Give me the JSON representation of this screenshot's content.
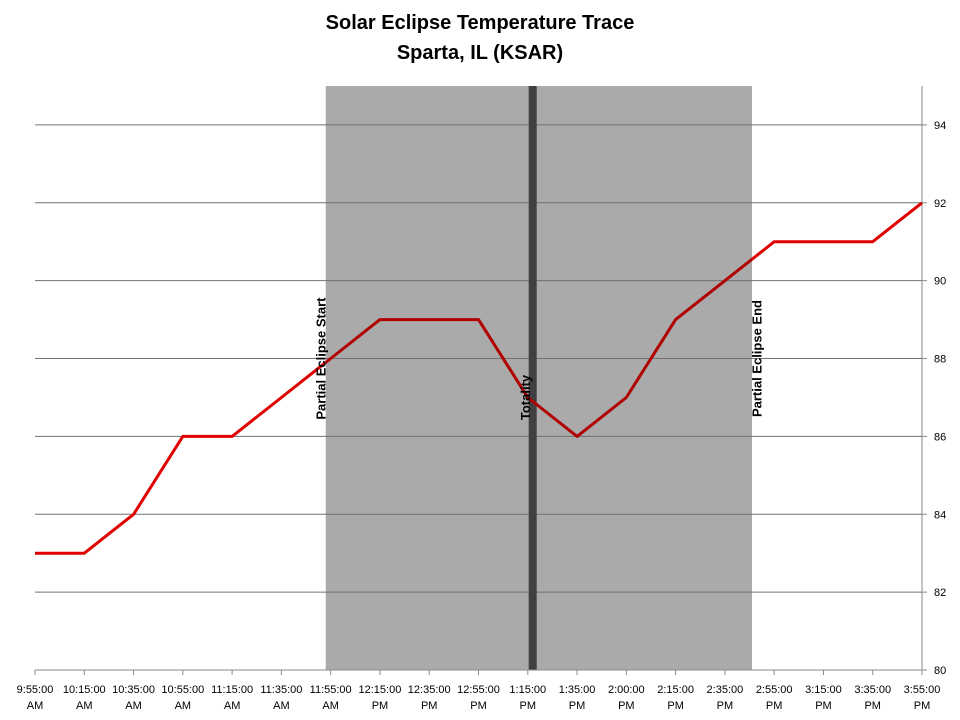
{
  "chart_data": {
    "type": "line",
    "title": "Solar Eclipse Temperature Trace",
    "subtitle": "Sparta, IL (KSAR)",
    "xlabel": "",
    "ylabel": "",
    "ylim": [
      80,
      95
    ],
    "y_ticks": [
      80,
      82,
      84,
      86,
      88,
      90,
      92,
      94
    ],
    "y_axis_side": "right",
    "grid": true,
    "x_tick_labels": [
      [
        "9:55:00",
        "AM"
      ],
      [
        "10:15:00",
        "AM"
      ],
      [
        "10:35:00",
        "AM"
      ],
      [
        "10:55:00",
        "AM"
      ],
      [
        "11:15:00",
        "AM"
      ],
      [
        "11:35:00",
        "AM"
      ],
      [
        "11:55:00",
        "AM"
      ],
      [
        "12:15:00",
        "PM"
      ],
      [
        "12:35:00",
        "PM"
      ],
      [
        "12:55:00",
        "PM"
      ],
      [
        "1:15:00",
        "PM"
      ],
      [
        "1:35:00",
        "PM"
      ],
      [
        "2:00:00",
        "PM"
      ],
      [
        "2:15:00",
        "PM"
      ],
      [
        "2:35:00",
        "PM"
      ],
      [
        "2:55:00",
        "PM"
      ],
      [
        "3:15:00",
        "PM"
      ],
      [
        "3:35:00",
        "PM"
      ],
      [
        "3:55:00",
        "PM"
      ]
    ],
    "series": [
      {
        "name": "Temperature",
        "color": "#e00000",
        "shaded_color": "#b00000",
        "values": [
          83,
          83,
          84,
          86,
          86,
          87,
          88,
          89,
          89,
          89,
          87,
          86,
          87,
          89,
          90,
          91,
          91,
          91,
          92
        ]
      }
    ],
    "shaded_region": {
      "start_index": 5.9,
      "end_index": 14.55,
      "color": "#aaaaaa"
    },
    "totality": {
      "index": 10.1,
      "color": "#404040"
    },
    "annotations": [
      {
        "text": "Partial Eclipse Start",
        "index": 5.8,
        "value": 88
      },
      {
        "text": "Totality",
        "index": 9.95,
        "value": 87
      },
      {
        "text": "Partial Eclipse End",
        "index": 14.65,
        "value": 88
      }
    ]
  }
}
